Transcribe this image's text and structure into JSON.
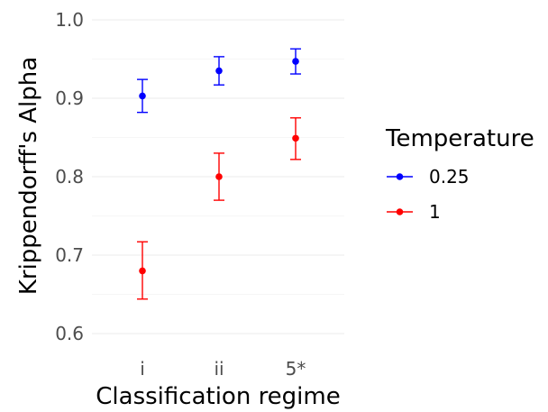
{
  "chart_data": {
    "type": "scatter",
    "subtype": "point-with-error-bars",
    "categories": [
      "i",
      "ii",
      "5*"
    ],
    "xlabel": "Classification regime",
    "ylabel": "Krippendorff's Alpha",
    "ylim": [
      0.6,
      1.0
    ],
    "yticks": [
      0.6,
      0.7,
      0.8,
      0.9,
      1.0
    ],
    "ytick_labels": [
      "0.6",
      "0.7",
      "0.8",
      "0.9",
      "1.0"
    ],
    "grid": true,
    "legend": {
      "title": "Temperature",
      "position": "right",
      "entries": [
        "0.25",
        "1"
      ]
    },
    "series": [
      {
        "name": "0.25",
        "color": "#0000ff",
        "values": [
          0.903,
          0.935,
          0.947
        ],
        "lower": [
          0.882,
          0.917,
          0.931
        ],
        "upper": [
          0.924,
          0.953,
          0.963
        ]
      },
      {
        "name": "1",
        "color": "#ff0000",
        "values": [
          0.68,
          0.8,
          0.849
        ],
        "lower": [
          0.644,
          0.77,
          0.822
        ],
        "upper": [
          0.717,
          0.83,
          0.875
        ]
      }
    ]
  }
}
